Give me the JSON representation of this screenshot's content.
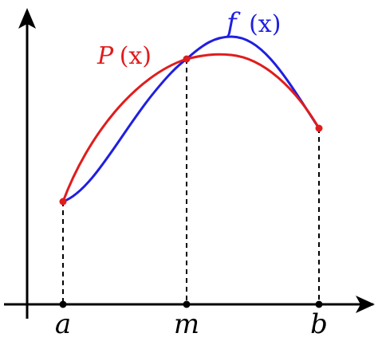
{
  "labels": {
    "tick_a": "a",
    "tick_m": "m",
    "tick_b": "b",
    "f_name": "f",
    "f_arg": "(x)",
    "p_name": "P",
    "p_arg": "(x)"
  },
  "colors": {
    "f_curve": "#1f1fe0",
    "p_curve": "#e01c1c",
    "axis": "#000000"
  }
}
